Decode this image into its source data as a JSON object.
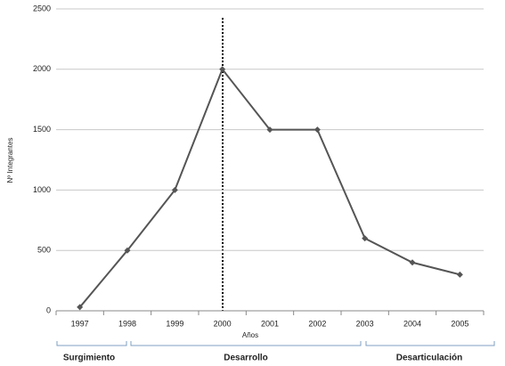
{
  "chart_data": {
    "type": "line",
    "categories": [
      "1997",
      "1998",
      "1999",
      "2000",
      "2001",
      "2002",
      "2003",
      "2004",
      "2005"
    ],
    "values": [
      30,
      500,
      1000,
      2000,
      1500,
      1500,
      600,
      400,
      300
    ],
    "color": "#555555",
    "ylim": [
      0,
      2500
    ],
    "yticks": [
      0,
      500,
      1000,
      1500,
      2000,
      2500
    ],
    "grid": true,
    "x_label": "Años",
    "y_label": "Nº Integrantes",
    "annotations": [
      "Surgimiento",
      "Desarrollo",
      "Desarticulación"
    ]
  }
}
